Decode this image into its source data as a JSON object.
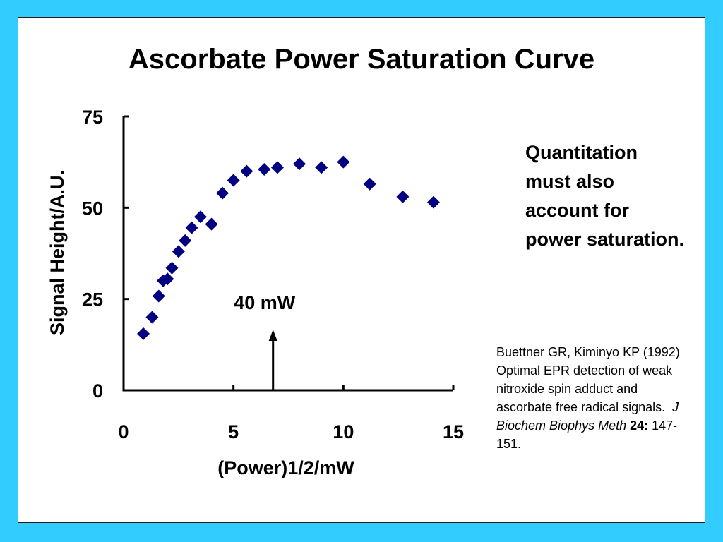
{
  "slide": {
    "title": "Ascorbate Power Saturation Curve",
    "note": "Quantitation must also account for power saturation.",
    "citation": {
      "authors_text": "Buettner GR, Kiminyo KP (1992) Optimal EPR detection of weak nitroxide spin adduct and ascorbate free radical signals.",
      "journal": "J Biochem Biophys Meth",
      "volume": "24:",
      "pages": "147-151."
    },
    "colors": {
      "background": "#33ccff",
      "panel": "#ffffff",
      "marker": "#000080"
    }
  },
  "chart_data": {
    "type": "scatter",
    "title": "",
    "xlabel": "(Power)1/2/mW",
    "ylabel": "Signal Height/A.U.",
    "xlim": [
      0,
      15
    ],
    "ylim": [
      0,
      75
    ],
    "xticks": [
      "0",
      "5",
      "10",
      "15"
    ],
    "yticks": [
      "0",
      "25",
      "50",
      "75"
    ],
    "grid": false,
    "marker": "diamond",
    "points": [
      [
        0.9,
        15.5
      ],
      [
        1.3,
        20
      ],
      [
        1.6,
        25.8
      ],
      [
        1.8,
        30
      ],
      [
        2.0,
        30.5
      ],
      [
        2.2,
        33.5
      ],
      [
        2.5,
        38
      ],
      [
        2.8,
        41
      ],
      [
        3.1,
        44.5
      ],
      [
        3.5,
        47.5
      ],
      [
        4.0,
        45.5
      ],
      [
        4.5,
        54
      ],
      [
        5.0,
        57.5
      ],
      [
        5.6,
        60
      ],
      [
        6.4,
        60.5
      ],
      [
        7.0,
        61
      ],
      [
        8.0,
        62
      ],
      [
        9.0,
        61
      ],
      [
        10.0,
        62.5
      ],
      [
        11.2,
        56.5
      ],
      [
        12.7,
        53
      ],
      [
        14.1,
        51.5
      ]
    ],
    "annotation": {
      "text": "40 mW",
      "x": 6.8
    }
  }
}
